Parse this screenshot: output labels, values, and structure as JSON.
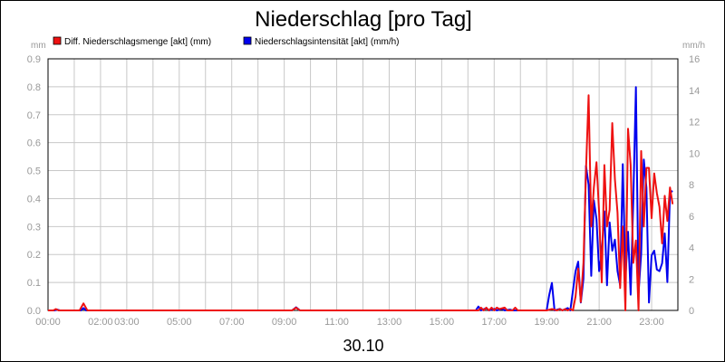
{
  "chart_data": {
    "type": "line",
    "title": "Niederschlag [pro Tag]",
    "xlabel": "30.10",
    "left_unit": "mm",
    "right_unit": "mm/h",
    "x_ticks": [
      "00:00",
      "02:00",
      "03:00",
      "05:00",
      "07:00",
      "09:00",
      "11:00",
      "13:00",
      "15:00",
      "17:00",
      "19:00",
      "21:00",
      "23:00"
    ],
    "x_tick_hours": [
      0,
      2,
      3,
      5,
      7,
      9,
      11,
      13,
      15,
      17,
      19,
      21,
      23
    ],
    "x_range_hours": [
      0,
      24
    ],
    "y_left": {
      "min": 0,
      "max": 0.9,
      "ticks": [
        "0.0",
        "0.1",
        "0.2",
        "0.3",
        "0.4",
        "0.5",
        "0.6",
        "0.7",
        "0.8",
        "0.9"
      ]
    },
    "y_right": {
      "min": 0,
      "max": 16,
      "ticks": [
        "0",
        "2",
        "4",
        "6",
        "8",
        "10",
        "12",
        "14",
        "16"
      ]
    },
    "grid": true,
    "legend_position": "top-left",
    "series": [
      {
        "name": "Diff. Niederschlagsmenge [akt] (mm)",
        "axis": "left",
        "color": "#ee1111",
        "points": [
          [
            0,
            0
          ],
          [
            0.2,
            0
          ],
          [
            0.3,
            0.005
          ],
          [
            0.4,
            0
          ],
          [
            1.2,
            0
          ],
          [
            1.35,
            0.025
          ],
          [
            1.5,
            0
          ],
          [
            9.3,
            0
          ],
          [
            9.45,
            0.01
          ],
          [
            9.6,
            0
          ],
          [
            16.4,
            0
          ],
          [
            16.5,
            0.01
          ],
          [
            16.6,
            0
          ],
          [
            16.7,
            0.01
          ],
          [
            16.8,
            0
          ],
          [
            16.9,
            0.01
          ],
          [
            17.0,
            0
          ],
          [
            17.1,
            0.01
          ],
          [
            17.2,
            0.005
          ],
          [
            17.4,
            0.01
          ],
          [
            17.5,
            0
          ],
          [
            17.7,
            0
          ],
          [
            17.8,
            0.01
          ],
          [
            17.9,
            0
          ],
          [
            19.0,
            0
          ],
          [
            19.2,
            0.005
          ],
          [
            19.4,
            0
          ],
          [
            19.5,
            0.005
          ],
          [
            19.6,
            0
          ],
          [
            19.7,
            0.005
          ],
          [
            19.8,
            0
          ],
          [
            19.9,
            0.005
          ],
          [
            20.0,
            0
          ],
          [
            20.1,
            0.05
          ],
          [
            20.2,
            0.15
          ],
          [
            20.3,
            0.03
          ],
          [
            20.4,
            0.17
          ],
          [
            20.5,
            0.5
          ],
          [
            20.6,
            0.77
          ],
          [
            20.7,
            0.3
          ],
          [
            20.8,
            0.44
          ],
          [
            20.9,
            0.53
          ],
          [
            21.0,
            0.35
          ],
          [
            21.1,
            0.1
          ],
          [
            21.2,
            0.52
          ],
          [
            21.3,
            0.3
          ],
          [
            21.4,
            0.36
          ],
          [
            21.5,
            0.67
          ],
          [
            21.6,
            0.47
          ],
          [
            21.7,
            0.35
          ],
          [
            21.8,
            0.08
          ],
          [
            21.9,
            0.3
          ],
          [
            22.0,
            0.0
          ],
          [
            22.1,
            0.65
          ],
          [
            22.2,
            0.52
          ],
          [
            22.3,
            0.17
          ],
          [
            22.4,
            0.25
          ],
          [
            22.5,
            0.0
          ],
          [
            22.6,
            0.57
          ],
          [
            22.7,
            0.3
          ],
          [
            22.8,
            0.51
          ],
          [
            22.9,
            0.51
          ],
          [
            23.0,
            0.33
          ],
          [
            23.1,
            0.49
          ],
          [
            23.2,
            0.42
          ],
          [
            23.3,
            0.37
          ],
          [
            23.4,
            0.24
          ],
          [
            23.5,
            0.41
          ],
          [
            23.6,
            0.32
          ],
          [
            23.7,
            0.44
          ],
          [
            23.8,
            0.38
          ]
        ]
      },
      {
        "name": "Niederschlagsintensität [akt] (mm/h)",
        "axis": "right",
        "color": "#0000ee",
        "points": [
          [
            0,
            0
          ],
          [
            0.25,
            0
          ],
          [
            0.35,
            0.05
          ],
          [
            0.45,
            0
          ],
          [
            1.25,
            0
          ],
          [
            1.35,
            0.15
          ],
          [
            1.45,
            0
          ],
          [
            9.3,
            0
          ],
          [
            9.45,
            0.2
          ],
          [
            9.6,
            0
          ],
          [
            16.3,
            0
          ],
          [
            16.4,
            0.25
          ],
          [
            16.5,
            0
          ],
          [
            16.7,
            0.15
          ],
          [
            16.8,
            0
          ],
          [
            17.0,
            0.1
          ],
          [
            17.1,
            0
          ],
          [
            17.3,
            0.1
          ],
          [
            17.4,
            0
          ],
          [
            17.6,
            0.05
          ],
          [
            17.7,
            0
          ],
          [
            19.0,
            0
          ],
          [
            19.1,
            1.0
          ],
          [
            19.2,
            1.75
          ],
          [
            19.3,
            0
          ],
          [
            19.5,
            0.1
          ],
          [
            19.6,
            0
          ],
          [
            19.8,
            0.15
          ],
          [
            19.9,
            0
          ],
          [
            20.1,
            2.5
          ],
          [
            20.2,
            3.1
          ],
          [
            20.3,
            0.5
          ],
          [
            20.4,
            2.0
          ],
          [
            20.5,
            9.2
          ],
          [
            20.6,
            8.0
          ],
          [
            20.7,
            2.2
          ],
          [
            20.8,
            7.0
          ],
          [
            20.9,
            5.8
          ],
          [
            21.0,
            2.5
          ],
          [
            21.1,
            3.6
          ],
          [
            21.2,
            6.3
          ],
          [
            21.3,
            1.6
          ],
          [
            21.4,
            5.6
          ],
          [
            21.5,
            3.8
          ],
          [
            21.6,
            4.5
          ],
          [
            21.7,
            2.5
          ],
          [
            21.8,
            1.6
          ],
          [
            21.9,
            9.3
          ],
          [
            22.0,
            2.0
          ],
          [
            22.1,
            5.0
          ],
          [
            22.2,
            1.0
          ],
          [
            22.3,
            7.0
          ],
          [
            22.4,
            14.2
          ],
          [
            22.5,
            1.1
          ],
          [
            22.6,
            3.6
          ],
          [
            22.7,
            9.6
          ],
          [
            22.8,
            7.8
          ],
          [
            22.9,
            0.5
          ],
          [
            23.0,
            3.5
          ],
          [
            23.1,
            3.8
          ],
          [
            23.2,
            2.6
          ],
          [
            23.3,
            2.5
          ],
          [
            23.4,
            3.0
          ],
          [
            23.5,
            4.9
          ],
          [
            23.6,
            1.8
          ],
          [
            23.7,
            7.5
          ],
          [
            23.8,
            7.6
          ]
        ]
      }
    ]
  }
}
